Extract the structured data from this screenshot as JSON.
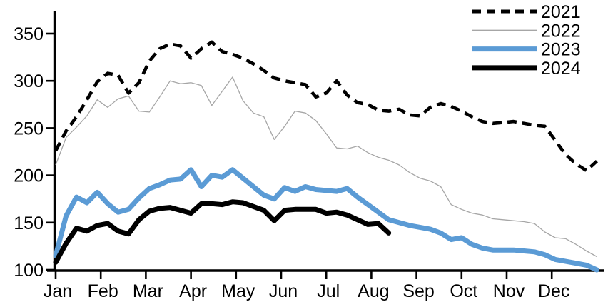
{
  "chart_data": {
    "type": "line",
    "title": "",
    "subtitle": "",
    "x_axis": {
      "label": "",
      "tick_labels": [
        "Jan",
        "Feb",
        "Mar",
        "Apr",
        "May",
        "Jun",
        "Jul",
        "Aug",
        "Sep",
        "Oct",
        "Nov",
        "Dec"
      ],
      "resolution": "weekly",
      "range_note": "weekly points from start of Jan through end of Dec"
    },
    "y_axis": {
      "label": "",
      "ticks": [
        100,
        150,
        200,
        250,
        300,
        350
      ],
      "ylim": [
        100,
        374
      ],
      "grid": false
    },
    "legend": {
      "position": "top-right",
      "entries": [
        "2021",
        "2022",
        "2023",
        "2024"
      ]
    },
    "colors": {
      "series_2021": "#000000",
      "series_2022": "#a6a6a6",
      "series_2023": "#5b9bd5",
      "series_2024": "#000000",
      "axis": "#000000",
      "background": "#ffffff"
    },
    "series": [
      {
        "name": "2021",
        "style": "dashed",
        "color": "#000000",
        "stroke_width": 4.6,
        "values": [
          226,
          247,
          262,
          280,
          299,
          308,
          306,
          287,
          298,
          321,
          334,
          339,
          337,
          324,
          334,
          341,
          331,
          328,
          324,
          318,
          311,
          303,
          300,
          298,
          296,
          283,
          287,
          300,
          285,
          277,
          275,
          269,
          268,
          270,
          264,
          263,
          272,
          276,
          273,
          268,
          262,
          257,
          255,
          256,
          257,
          255,
          253,
          252,
          237,
          222,
          212,
          205,
          215
        ]
      },
      {
        "name": "2022",
        "style": "solid-thin",
        "color": "#a6a6a6",
        "stroke_width": 1.3,
        "values": [
          211,
          240,
          251,
          263,
          280,
          272,
          281,
          284,
          268,
          267,
          283,
          300,
          297,
          298,
          295,
          274,
          289,
          304,
          279,
          266,
          262,
          238,
          252,
          268,
          266,
          258,
          244,
          229,
          228,
          231,
          224,
          219,
          216,
          211,
          203,
          197,
          194,
          188,
          169,
          164,
          160,
          158,
          154,
          153,
          152,
          151,
          149,
          140,
          134,
          133,
          127,
          120,
          114
        ]
      },
      {
        "name": "2023",
        "style": "solid-thick",
        "color": "#5b9bd5",
        "stroke_width": 7,
        "values": [
          115,
          157,
          177,
          171,
          182,
          170,
          161,
          164,
          176,
          186,
          190,
          195,
          196,
          206,
          188,
          200,
          198,
          206,
          197,
          188,
          179,
          175,
          187,
          183,
          188,
          185,
          184,
          183,
          186,
          177,
          169,
          161,
          153,
          150,
          147,
          145,
          143,
          139,
          132,
          134,
          127,
          123,
          121,
          121,
          121,
          120,
          119,
          116,
          111,
          109,
          107,
          105,
          100
        ]
      },
      {
        "name": "2024",
        "style": "solid-thick",
        "color": "#000000",
        "stroke_width": 7,
        "values": [
          108,
          128,
          144,
          141,
          147,
          149,
          141,
          138,
          153,
          162,
          165,
          166,
          163,
          160,
          170,
          170,
          169,
          172,
          171,
          167,
          163,
          152,
          163,
          164,
          164,
          164,
          160,
          161,
          158,
          153,
          148,
          149,
          139
        ],
        "note": "series ends mid-August"
      }
    ]
  }
}
